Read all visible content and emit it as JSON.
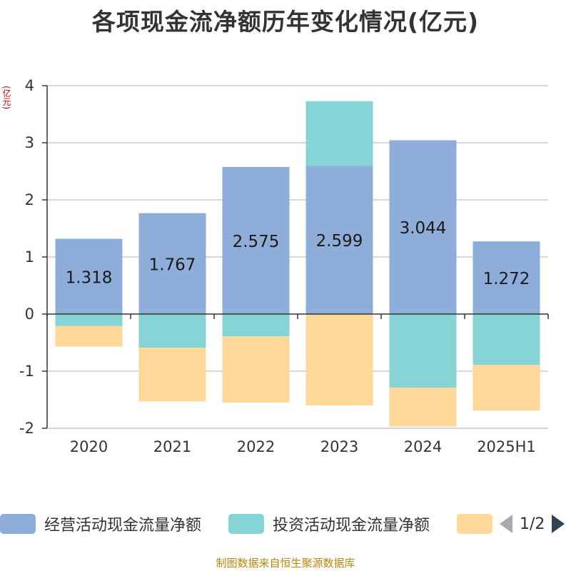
{
  "chart_data": {
    "type": "bar",
    "stacked": true,
    "title": "各项现金流净额历年变化情况(亿元)",
    "ylabel": "(亿元)",
    "xlabel": "",
    "categories": [
      "2020",
      "2021",
      "2022",
      "2023",
      "2024",
      "2025H1"
    ],
    "ylim": [
      -2,
      4
    ],
    "yticks": [
      "-2",
      "-1",
      "0",
      "1",
      "2",
      "3",
      "4"
    ],
    "grid": true,
    "legend_position": "bottom",
    "series": [
      {
        "name": "经营活动现金流量净额",
        "color": "#8eadd9",
        "values": [
          1.318,
          1.767,
          2.575,
          2.599,
          3.044,
          1.272
        ],
        "labels": [
          "1.318",
          "1.767",
          "2.575",
          "2.599",
          "3.044",
          "1.272"
        ]
      },
      {
        "name": "投资活动现金流量净额",
        "color": "#86d4d6",
        "values": [
          -0.21,
          -0.59,
          -0.39,
          1.13,
          -1.29,
          -0.89
        ]
      },
      {
        "color": "#fdd898",
        "values": [
          -0.36,
          -0.94,
          -1.16,
          -1.6,
          -0.68,
          -0.8
        ]
      }
    ]
  },
  "legend": {
    "pager_label": "1/2",
    "pager_prev_icon": "triangle-left-icon",
    "pager_next_icon": "triangle-right-icon"
  },
  "footer": "制图数据来自恒生聚源数据库"
}
